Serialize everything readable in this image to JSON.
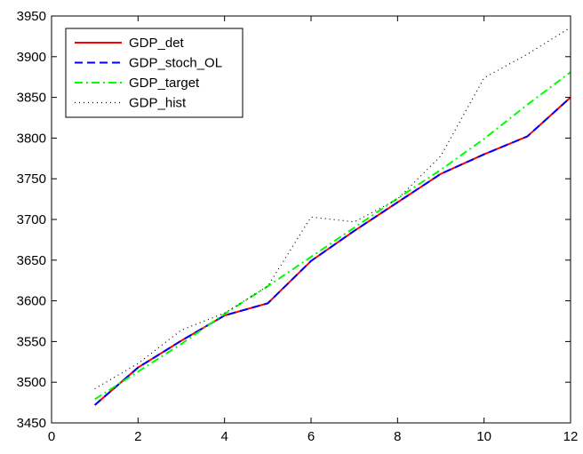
{
  "chart_data": {
    "type": "line",
    "title": "",
    "xlabel": "",
    "ylabel": "",
    "xlim": [
      0,
      12
    ],
    "ylim": [
      3450,
      3950
    ],
    "xticks": [
      0,
      2,
      4,
      6,
      8,
      10,
      12
    ],
    "yticks": [
      3450,
      3500,
      3550,
      3600,
      3650,
      3700,
      3750,
      3800,
      3850,
      3900,
      3950
    ],
    "x": [
      1,
      2,
      3,
      4,
      5,
      6,
      7,
      8,
      9,
      10,
      11,
      12
    ],
    "grid": false,
    "legend_position": "top-left",
    "series": [
      {
        "name": "GDP_det",
        "color": "#ff0000",
        "line_style": "solid",
        "values": [
          3472,
          3518,
          3551,
          3582,
          3597,
          3649,
          3686,
          3721,
          3756,
          3780,
          3802,
          3850
        ]
      },
      {
        "name": "GDP_stoch_OL",
        "color": "#0000ff",
        "line_style": "dashed",
        "values": [
          3472,
          3518,
          3551,
          3582,
          3597,
          3649,
          3686,
          3721,
          3756,
          3780,
          3802,
          3850
        ]
      },
      {
        "name": "GDP_target",
        "color": "#00ff00",
        "line_style": "dash-dot",
        "values": [
          3479,
          3513,
          3547,
          3584,
          3618,
          3654,
          3690,
          3726,
          3761,
          3799,
          3841,
          3881
        ]
      },
      {
        "name": "GDP_hist",
        "color": "#000000",
        "line_style": "dotted",
        "values": [
          3492,
          3523,
          3564,
          3585,
          3618,
          3703,
          3697,
          3725,
          3778,
          3874,
          3903,
          3936
        ]
      }
    ]
  }
}
